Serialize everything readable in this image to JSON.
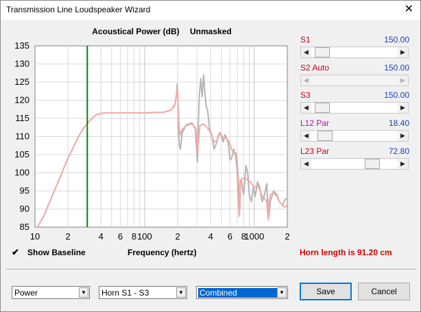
{
  "window": {
    "title": "Transmission Line Loudspeaker Wizard",
    "close_glyph": "✕"
  },
  "chart_title": {
    "main": "Acoustical Power (dB)",
    "mode": "Unmasked"
  },
  "chart_data": {
    "type": "line",
    "title": "Acoustical Power (dB)   Unmasked",
    "xlabel": "Frequency (hertz)",
    "ylabel": "",
    "x_scale": "log",
    "xlim": [
      10,
      2000
    ],
    "ylim": [
      85,
      135
    ],
    "y_ticks": [
      135,
      130,
      125,
      120,
      115,
      110,
      105,
      100,
      95,
      90,
      85
    ],
    "x_tick_labels": [
      {
        "x": 10,
        "label": "10"
      },
      {
        "x": 20,
        "label": "2"
      },
      {
        "x": 40,
        "label": "4"
      },
      {
        "x": 60,
        "label": "6"
      },
      {
        "x": 80,
        "label": "8"
      },
      {
        "x": 100,
        "label": "100"
      },
      {
        "x": 200,
        "label": "2"
      },
      {
        "x": 400,
        "label": "4"
      },
      {
        "x": 600,
        "label": "6"
      },
      {
        "x": 800,
        "label": "8"
      },
      {
        "x": 1000,
        "label": "1000"
      },
      {
        "x": 2000,
        "label": "2"
      }
    ],
    "grid": true,
    "marker_line": {
      "x": 30,
      "color": "#008000"
    },
    "series": [
      {
        "color": "#b4b4b4",
        "points": [
          [
            10.5,
            85
          ],
          [
            12,
            88
          ],
          [
            15,
            95
          ],
          [
            20,
            104
          ],
          [
            25,
            110
          ],
          [
            28,
            112.5
          ],
          [
            32,
            114.5
          ],
          [
            36,
            116
          ],
          [
            42,
            116.5
          ],
          [
            60,
            116.5
          ],
          [
            100,
            116.5
          ],
          [
            150,
            116.7
          ],
          [
            175,
            117.3
          ],
          [
            190,
            119
          ],
          [
            196,
            122
          ],
          [
            198,
            124.5
          ],
          [
            201,
            121
          ],
          [
            204,
            112
          ],
          [
            207,
            107.5
          ],
          [
            212,
            106.5
          ],
          [
            220,
            111
          ],
          [
            240,
            113.2
          ],
          [
            270,
            113.8
          ],
          [
            290,
            112
          ],
          [
            300,
            105
          ],
          [
            303,
            103
          ],
          [
            307,
            111
          ],
          [
            315,
            121
          ],
          [
            325,
            126
          ],
          [
            335,
            121
          ],
          [
            345,
            127
          ],
          [
            355,
            122
          ],
          [
            365,
            118
          ],
          [
            375,
            117.5
          ],
          [
            390,
            112
          ],
          [
            410,
            110.5
          ],
          [
            430,
            106.5
          ],
          [
            450,
            108
          ],
          [
            470,
            110.5
          ],
          [
            490,
            111
          ],
          [
            500,
            110.5
          ],
          [
            520,
            108.5
          ],
          [
            540,
            110.5
          ],
          [
            560,
            109.5
          ],
          [
            580,
            108
          ],
          [
            600,
            103.5
          ],
          [
            620,
            104
          ],
          [
            650,
            106.5
          ],
          [
            680,
            104
          ],
          [
            700,
            100
          ],
          [
            720,
            91
          ],
          [
            730,
            88
          ],
          [
            745,
            97.5
          ],
          [
            760,
            98
          ],
          [
            800,
            94
          ],
          [
            840,
            102
          ],
          [
            870,
            100
          ],
          [
            900,
            94
          ],
          [
            940,
            92
          ],
          [
            980,
            96
          ],
          [
            1020,
            93.5
          ],
          [
            1070,
            97.5
          ],
          [
            1120,
            96
          ],
          [
            1180,
            92
          ],
          [
            1240,
            94
          ],
          [
            1300,
            97
          ],
          [
            1330,
            90
          ],
          [
            1360,
            88
          ],
          [
            1400,
            92
          ],
          [
            1500,
            95
          ],
          [
            1600,
            94
          ],
          [
            1700,
            92
          ],
          [
            1800,
            91
          ],
          [
            1900,
            92.5
          ],
          [
            2000,
            93
          ]
        ]
      },
      {
        "color": "#f4aaaa",
        "points": [
          [
            10.5,
            85
          ],
          [
            12,
            88
          ],
          [
            15,
            95
          ],
          [
            20,
            104
          ],
          [
            25,
            110
          ],
          [
            28,
            112.5
          ],
          [
            32,
            114.5
          ],
          [
            36,
            116
          ],
          [
            42,
            116.5
          ],
          [
            60,
            116.5
          ],
          [
            100,
            116.5
          ],
          [
            150,
            116.7
          ],
          [
            175,
            117.3
          ],
          [
            188,
            118.5
          ],
          [
            194,
            121
          ],
          [
            197,
            123
          ],
          [
            200,
            121.5
          ],
          [
            204,
            116
          ],
          [
            207,
            112
          ],
          [
            212,
            110.5
          ],
          [
            220,
            112
          ],
          [
            240,
            113
          ],
          [
            270,
            113.5
          ],
          [
            290,
            112.5
          ],
          [
            300,
            109.5
          ],
          [
            305,
            105
          ],
          [
            310,
            109
          ],
          [
            320,
            113
          ],
          [
            340,
            113.5
          ],
          [
            360,
            113
          ],
          [
            380,
            112
          ],
          [
            400,
            111
          ],
          [
            430,
            108.5
          ],
          [
            460,
            109
          ],
          [
            480,
            111
          ],
          [
            500,
            110
          ],
          [
            530,
            109.5
          ],
          [
            560,
            109.5
          ],
          [
            590,
            108.5
          ],
          [
            620,
            106.5
          ],
          [
            650,
            105.5
          ],
          [
            680,
            105.5
          ],
          [
            700,
            103
          ],
          [
            720,
            97
          ],
          [
            728,
            88
          ],
          [
            738,
            90
          ],
          [
            750,
            98
          ],
          [
            780,
            98.5
          ],
          [
            820,
            98.5
          ],
          [
            870,
            98
          ],
          [
            920,
            97.5
          ],
          [
            970,
            96.5
          ],
          [
            1020,
            96
          ],
          [
            1070,
            96.5
          ],
          [
            1120,
            95.5
          ],
          [
            1180,
            93.5
          ],
          [
            1240,
            93
          ],
          [
            1300,
            92
          ],
          [
            1330,
            88
          ],
          [
            1345,
            87
          ],
          [
            1360,
            92
          ],
          [
            1400,
            94
          ],
          [
            1500,
            94.5
          ],
          [
            1600,
            93.5
          ],
          [
            1700,
            92
          ],
          [
            1800,
            91
          ],
          [
            1900,
            90.5
          ],
          [
            2000,
            91
          ]
        ]
      }
    ]
  },
  "sliders": [
    {
      "id": "s1",
      "label": "S1",
      "value": "150.00",
      "color": "#c8001e",
      "position": 0.05
    },
    {
      "id": "s2",
      "label": "S2  Auto",
      "value": "150.00",
      "color": "#c8001e",
      "position": 0.0,
      "disabled": true
    },
    {
      "id": "s3",
      "label": "S3",
      "value": "150.00",
      "color": "#c8001e",
      "position": 0.05
    },
    {
      "id": "l12",
      "label": "L12  Par",
      "value": "18.40",
      "color": "#c000c0",
      "position": 0.09
    },
    {
      "id": "l23",
      "label": "L23  Par",
      "value": "72.80",
      "color": "#c8001e",
      "position": 0.75
    }
  ],
  "show_baseline": {
    "checked_glyph": "✔",
    "label": "Show Baseline"
  },
  "frequency_label": "Frequency (hertz)",
  "horn_length": "Horn length is 91.20 cm",
  "selects": {
    "mode": "Power",
    "range": "Horn S1 - S3",
    "curve": "Combined"
  },
  "buttons": {
    "save": "Save",
    "cancel": "Cancel"
  }
}
